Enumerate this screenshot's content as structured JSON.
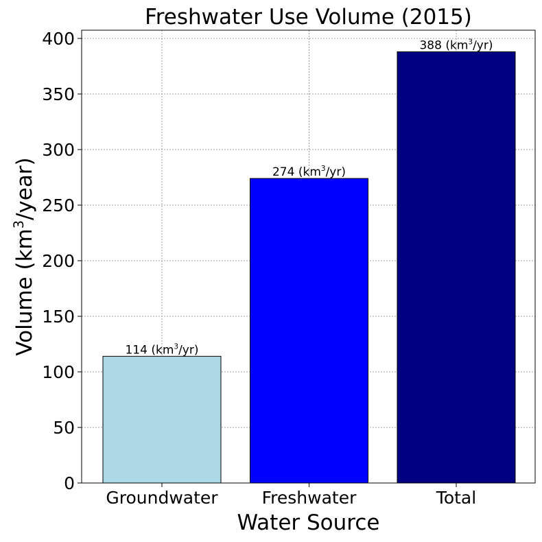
{
  "chart_data": {
    "type": "bar",
    "title": "Freshwater Use Volume (2015)",
    "xlabel": "Water Source",
    "ylabel": {
      "prefix": "Volume (km",
      "sup": "3",
      "suffix": "/year)"
    },
    "categories": [
      "Groundwater",
      "Freshwater",
      "Total"
    ],
    "values": [
      114,
      274,
      388
    ],
    "colors": [
      "#add8e6",
      "#0000ff",
      "#000080"
    ],
    "data_labels": [
      {
        "prefix": "114 (km",
        "sup": "3",
        "suffix": "/yr)"
      },
      {
        "prefix": "274 (km",
        "sup": "3",
        "suffix": "/yr)"
      },
      {
        "prefix": "388 (km",
        "sup": "3",
        "suffix": "/yr)"
      }
    ],
    "yticks": [
      0,
      50,
      100,
      150,
      200,
      250,
      300,
      350,
      400
    ],
    "ylim": [
      0,
      407.4
    ],
    "grid": true
  }
}
